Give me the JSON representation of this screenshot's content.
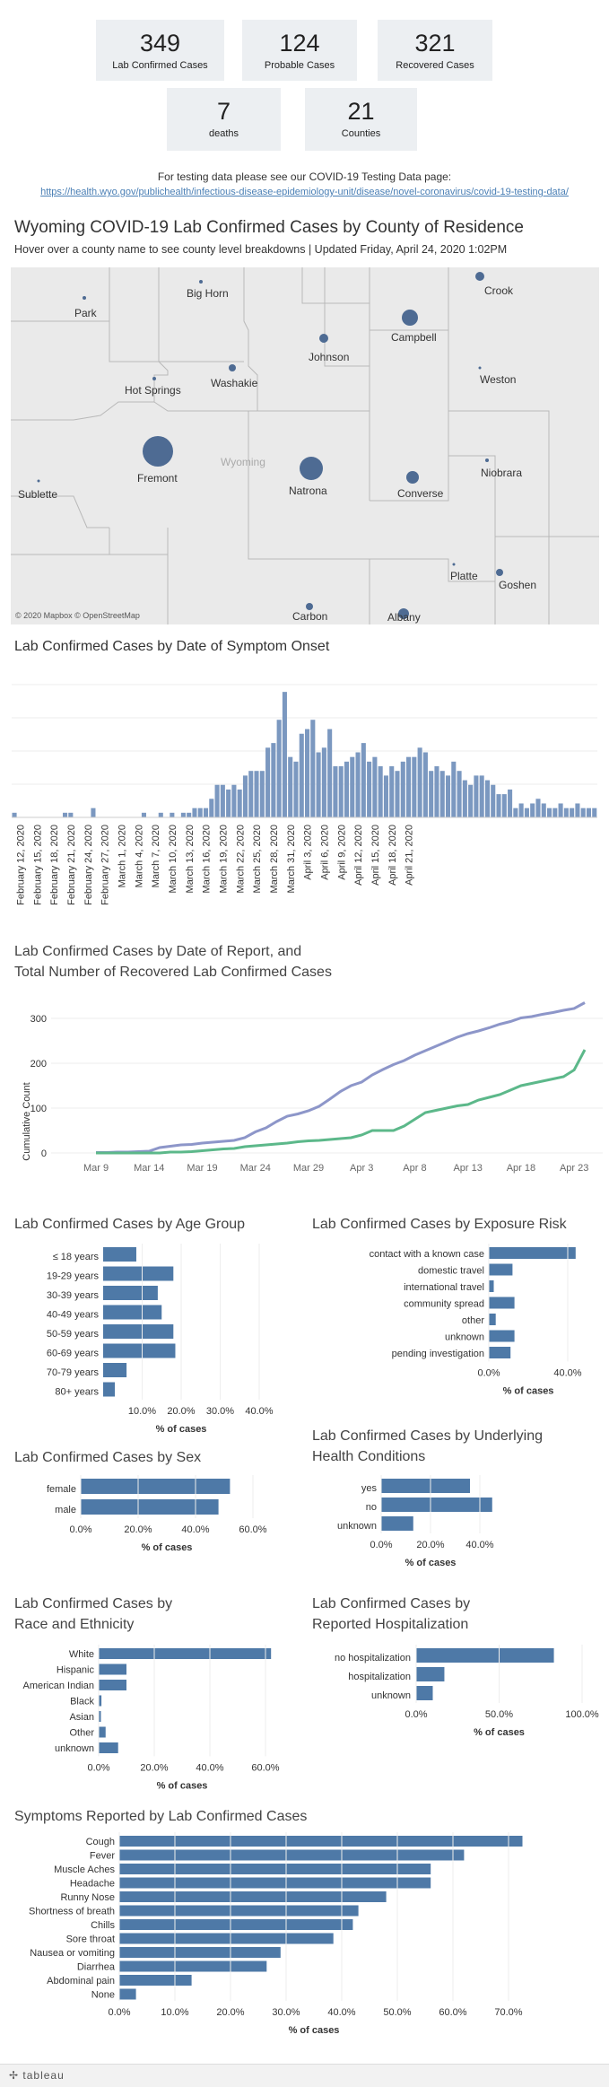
{
  "kpis": [
    {
      "value": "349",
      "label": "Lab Confirmed Cases"
    },
    {
      "value": "124",
      "label": "Probable Cases"
    },
    {
      "value": "321",
      "label": "Recovered Cases"
    },
    {
      "value": "7",
      "label": "deaths"
    },
    {
      "value": "21",
      "label": "Counties"
    }
  ],
  "testing": {
    "text": "For testing data please see our COVID-19 Testing Data page:",
    "link": "https://health.wyo.gov/publichealth/infectious-disease-epidemiology-unit/disease/novel-coronavirus/covid-19-testing-data/"
  },
  "map": {
    "title": "Wyoming COVID-19 Lab Confirmed Cases by County of Residence",
    "subtitle": "Hover over a county name to see county level breakdowns | Updated Friday, April 24, 2020 1:02PM",
    "state_label": "Wyoming",
    "attribution": "© 2020 Mapbox © OpenStreetMap",
    "counties": [
      "Park",
      "Big Horn",
      "Crook",
      "Campbell",
      "Johnson",
      "Washakie",
      "Hot Springs",
      "Weston",
      "Fremont",
      "Natrona",
      "Niobrara",
      "Converse",
      "Sublette",
      "Platte",
      "Goshen",
      "Carbon",
      "Albany"
    ],
    "dot_color": "#4e6b93"
  },
  "onset": {
    "title": "Lab Confirmed Cases by Date of Symptom Onset",
    "bar_color": "#7b98c0",
    "tick_labels": [
      "February 12, 2020",
      "February 15, 2020",
      "February 18, 2020",
      "February 21, 2020",
      "February 24, 2020",
      "February 27, 2020",
      "March 1, 2020",
      "March 4, 2020",
      "March 7, 2020",
      "March 10, 2020",
      "March 13, 2020",
      "March 16, 2020",
      "March 19, 2020",
      "March 22, 2020",
      "March 25, 2020",
      "March 28, 2020",
      "March 31, 2020",
      "April 3, 2020",
      "April 6, 2020",
      "April 9, 2020",
      "April 12, 2020",
      "April 15, 2020",
      "April 18, 2020",
      "April 21, 2020"
    ]
  },
  "report": {
    "title_line1": "Lab Confirmed Cases by Date of Report, and",
    "title_line2": "Total Number of Recovered Lab Confirmed Cases",
    "ylabel": "Cumulative Count",
    "yticks": [
      "0",
      "100",
      "200",
      "300"
    ],
    "xticks": [
      "Mar 9",
      "Mar 14",
      "Mar 19",
      "Mar 24",
      "Mar 29",
      "Apr 3",
      "Apr 8",
      "Apr 13",
      "Apr 18",
      "Apr 23"
    ],
    "confirmed_color": "#8d96c9",
    "recovered_color": "#5cb88a"
  },
  "age": {
    "title": "Lab Confirmed Cases by Age Group",
    "categories": [
      "≤ 18 years",
      "19-29 years",
      "30-39 years",
      "40-49 years",
      "50-59 years",
      "60-69 years",
      "70-79 years",
      "80+ years"
    ],
    "values": [
      8.5,
      18,
      14,
      15,
      18,
      18.5,
      6,
      3
    ],
    "ticks": [
      "10.0%",
      "20.0%",
      "30.0%",
      "40.0%"
    ],
    "xlabel": "% of cases"
  },
  "exposure": {
    "title": "Lab Confirmed Cases by Exposure Risk",
    "categories": [
      "contact with a known case",
      "domestic travel",
      "international travel",
      "community spread",
      "other",
      "unknown",
      "pending investigation"
    ],
    "values": [
      44,
      12,
      2.5,
      13,
      3.5,
      13,
      11
    ],
    "ticks": [
      "0.0%",
      "40.0%"
    ],
    "xlabel": "% of cases"
  },
  "sex": {
    "title": "Lab Confirmed Cases by Sex",
    "categories": [
      "female",
      "male"
    ],
    "values": [
      52,
      48
    ],
    "ticks": [
      "0.0%",
      "20.0%",
      "40.0%",
      "60.0%"
    ],
    "xlabel": "% of cases"
  },
  "conditions": {
    "title_line1": "Lab Confirmed Cases by Underlying",
    "title_line2": "Health Conditions",
    "categories": [
      "yes",
      "no",
      "unknown"
    ],
    "values": [
      36,
      45,
      13
    ],
    "ticks": [
      "0.0%",
      "20.0%",
      "40.0%"
    ],
    "xlabel": "% of cases"
  },
  "race": {
    "title_line1": "Lab Confirmed Cases by",
    "title_line2": "Race and Ethnicity",
    "categories": [
      "White",
      "Hispanic",
      "American Indian",
      "Black",
      "Asian",
      "Other",
      "unknown"
    ],
    "values": [
      62,
      10,
      10,
      1,
      0.8,
      2.5,
      7
    ],
    "ticks": [
      "0.0%",
      "20.0%",
      "40.0%",
      "60.0%"
    ],
    "xlabel": "% of cases"
  },
  "hosp": {
    "title_line1": "Lab Confirmed Cases by",
    "title_line2": "Reported Hospitalization",
    "categories": [
      "no hospitalization",
      "hospitalization",
      "unknown"
    ],
    "values": [
      83,
      17,
      10
    ],
    "ticks": [
      "0.0%",
      "50.0%",
      "100.0%"
    ],
    "xlabel": "% of cases"
  },
  "symptoms": {
    "title": "Symptoms Reported by Lab Confirmed Cases",
    "categories": [
      "Cough",
      "Fever",
      "Muscle Aches",
      "Headache",
      "Runny Nose",
      "Shortness of breath",
      "Chills",
      "Sore throat",
      "Nausea or vomiting",
      "Diarrhea",
      "Abdominal pain",
      "None"
    ],
    "values": [
      72.5,
      62,
      56,
      56,
      48,
      43,
      42,
      38.5,
      29,
      26.5,
      13,
      3
    ],
    "ticks": [
      "0.0%",
      "10.0%",
      "20.0%",
      "30.0%",
      "40.0%",
      "50.0%",
      "60.0%",
      "70.0%"
    ],
    "xlabel": "% of cases"
  },
  "bar_color": "#4e79a7",
  "footer": "tableau",
  "chart_data": [
    {
      "type": "bar",
      "title": "Lab Confirmed Cases by Date of Symptom Onset",
      "categories_note": "daily from Feb 11 to Apr 23, 2020",
      "values": [
        1,
        0,
        0,
        0,
        0,
        0,
        0,
        0,
        0,
        1,
        1,
        0,
        0,
        0,
        2,
        0,
        0,
        0,
        0,
        0,
        0,
        0,
        0,
        1,
        0,
        0,
        1,
        0,
        1,
        0,
        1,
        1,
        2,
        2,
        2,
        4,
        7,
        7,
        6,
        7,
        6,
        9,
        10,
        10,
        10,
        15,
        16,
        21,
        27,
        13,
        12,
        18,
        19,
        21,
        14,
        15,
        19,
        11,
        11,
        12,
        13,
        14,
        16,
        12,
        13,
        11,
        9,
        11,
        10,
        12,
        13,
        13,
        15,
        14,
        10,
        11,
        10,
        9,
        12,
        10,
        8,
        7,
        9,
        9,
        8,
        7,
        5,
        5,
        6,
        2,
        3,
        2,
        3,
        4,
        3,
        2,
        2,
        3,
        2,
        2,
        3,
        2,
        2,
        2
      ],
      "ylim": [
        0,
        30
      ]
    },
    {
      "type": "line",
      "title": "Lab Confirmed Cases by Date of Report, and Total Number of Recovered Lab Confirmed Cases",
      "ylabel": "Cumulative Count",
      "ylim": [
        0,
        350
      ],
      "x": [
        "Mar 9",
        "Mar 10",
        "Mar 11",
        "Mar 12",
        "Mar 13",
        "Mar 14",
        "Mar 15",
        "Mar 16",
        "Mar 17",
        "Mar 18",
        "Mar 19",
        "Mar 20",
        "Mar 21",
        "Mar 22",
        "Mar 23",
        "Mar 24",
        "Mar 25",
        "Mar 26",
        "Mar 27",
        "Mar 28",
        "Mar 29",
        "Mar 30",
        "Mar 31",
        "Apr 1",
        "Apr 2",
        "Apr 3",
        "Apr 4",
        "Apr 5",
        "Apr 6",
        "Apr 7",
        "Apr 8",
        "Apr 9",
        "Apr 10",
        "Apr 11",
        "Apr 12",
        "Apr 13",
        "Apr 14",
        "Apr 15",
        "Apr 16",
        "Apr 17",
        "Apr 18",
        "Apr 19",
        "Apr 20",
        "Apr 21",
        "Apr 22",
        "Apr 23",
        "Apr 24"
      ],
      "series": [
        {
          "values": [
            1,
            1,
            2,
            2,
            3,
            4,
            12,
            15,
            18,
            19,
            22,
            24,
            26,
            28,
            34,
            47,
            56,
            70,
            82,
            87,
            94,
            104,
            120,
            137,
            150,
            158,
            174,
            186,
            197,
            206,
            218,
            228,
            238,
            248,
            258,
            266,
            272,
            279,
            287,
            293,
            301,
            304,
            309,
            313,
            318,
            322,
            335
          ]
        },
        {
          "values": [
            0,
            0,
            0,
            0,
            0,
            0,
            0,
            2,
            2,
            3,
            5,
            7,
            9,
            10,
            14,
            16,
            18,
            20,
            22,
            25,
            27,
            28,
            30,
            32,
            34,
            40,
            50,
            50,
            50,
            60,
            75,
            90,
            95,
            100,
            105,
            108,
            118,
            124,
            130,
            140,
            150,
            155,
            160,
            165,
            170,
            185,
            230
          ]
        }
      ]
    }
  ]
}
